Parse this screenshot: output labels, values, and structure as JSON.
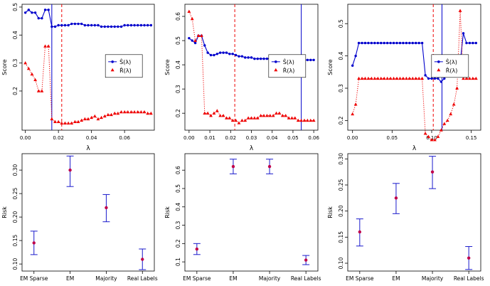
{
  "colors": {
    "s_series": "#0000cc",
    "r_series": "#ee0000",
    "errorbar": "#1a1acc",
    "point": "#c0004a"
  },
  "chart_data": [
    {
      "type": "line",
      "xlabel": "λ",
      "ylabel": "Score",
      "xlim": [
        -0.002,
        0.078
      ],
      "ylim": [
        0.06,
        0.51
      ],
      "xticks": [
        "0.00",
        "0.02",
        "0.04",
        "0.06"
      ],
      "xtick_values": [
        0,
        0.02,
        0.04,
        0.06
      ],
      "yticks": [
        "0.2",
        "0.3",
        "0.4",
        "0.5"
      ],
      "ytick_values": [
        0.2,
        0.3,
        0.4,
        0.5
      ],
      "x": [
        0.0,
        0.002,
        0.004,
        0.006,
        0.008,
        0.01,
        0.012,
        0.014,
        0.016,
        0.018,
        0.02,
        0.022,
        0.024,
        0.026,
        0.028,
        0.03,
        0.032,
        0.034,
        0.036,
        0.038,
        0.04,
        0.042,
        0.044,
        0.046,
        0.048,
        0.05,
        0.052,
        0.054,
        0.056,
        0.058,
        0.06,
        0.062,
        0.064,
        0.066,
        0.068,
        0.07,
        0.072,
        0.074,
        0.076
      ],
      "series": [
        {
          "name": "Ŝ(λ)",
          "values": [
            0.48,
            0.49,
            0.48,
            0.48,
            0.46,
            0.46,
            0.49,
            0.49,
            0.43,
            0.43,
            0.435,
            0.435,
            0.435,
            0.435,
            0.44,
            0.44,
            0.44,
            0.44,
            0.435,
            0.435,
            0.435,
            0.435,
            0.435,
            0.43,
            0.43,
            0.43,
            0.43,
            0.43,
            0.43,
            0.43,
            0.435,
            0.435,
            0.435,
            0.435,
            0.435,
            0.435,
            0.435,
            0.435,
            0.435
          ]
        },
        {
          "name": "R̂(λ)",
          "values": [
            0.3,
            0.28,
            0.26,
            0.24,
            0.2,
            0.2,
            0.36,
            0.36,
            0.1,
            0.09,
            0.09,
            0.085,
            0.085,
            0.085,
            0.085,
            0.09,
            0.09,
            0.095,
            0.1,
            0.1,
            0.105,
            0.11,
            0.1,
            0.105,
            0.11,
            0.115,
            0.115,
            0.12,
            0.12,
            0.125,
            0.125,
            0.125,
            0.125,
            0.125,
            0.125,
            0.125,
            0.125,
            0.12,
            0.12
          ]
        }
      ],
      "vlines": [
        {
          "x": 0.016,
          "style": "solid"
        },
        {
          "x": 0.022,
          "style": "dashed"
        }
      ],
      "legend": "right"
    },
    {
      "type": "line",
      "xlabel": "λ",
      "ylabel": "Score",
      "xlim": [
        -0.002,
        0.062
      ],
      "ylim": [
        0.13,
        0.65
      ],
      "xticks": [
        "0.00",
        "0.01",
        "0.02",
        "0.03",
        "0.04",
        "0.05",
        "0.06"
      ],
      "xtick_values": [
        0,
        0.01,
        0.02,
        0.03,
        0.04,
        0.05,
        0.06
      ],
      "yticks": [
        "0.2",
        "0.3",
        "0.4",
        "0.5",
        "0.6"
      ],
      "ytick_values": [
        0.2,
        0.3,
        0.4,
        0.5,
        0.6
      ],
      "x": [
        0.0,
        0.0015,
        0.003,
        0.0045,
        0.006,
        0.0075,
        0.009,
        0.0105,
        0.012,
        0.0135,
        0.015,
        0.0165,
        0.018,
        0.0195,
        0.021,
        0.0225,
        0.024,
        0.0255,
        0.027,
        0.0285,
        0.03,
        0.0315,
        0.033,
        0.0345,
        0.036,
        0.0375,
        0.039,
        0.0405,
        0.042,
        0.0435,
        0.045,
        0.0465,
        0.048,
        0.0495,
        0.051,
        0.0525,
        0.054,
        0.0555,
        0.057,
        0.0585,
        0.06
      ],
      "series": [
        {
          "name": "Ŝ(λ)",
          "values": [
            0.51,
            0.5,
            0.49,
            0.52,
            0.52,
            0.48,
            0.45,
            0.44,
            0.44,
            0.445,
            0.45,
            0.45,
            0.45,
            0.445,
            0.445,
            0.44,
            0.435,
            0.435,
            0.43,
            0.43,
            0.43,
            0.425,
            0.425,
            0.425,
            0.425,
            0.425,
            0.425,
            0.425,
            0.425,
            0.425,
            0.43,
            0.43,
            0.43,
            0.43,
            0.43,
            0.425,
            0.425,
            0.42,
            0.42,
            0.42,
            0.42
          ]
        },
        {
          "name": "R̂(λ)",
          "values": [
            0.62,
            0.59,
            0.5,
            0.52,
            0.52,
            0.2,
            0.2,
            0.19,
            0.2,
            0.21,
            0.19,
            0.19,
            0.18,
            0.18,
            0.17,
            0.17,
            0.16,
            0.17,
            0.17,
            0.18,
            0.18,
            0.18,
            0.18,
            0.19,
            0.19,
            0.19,
            0.19,
            0.19,
            0.2,
            0.2,
            0.19,
            0.19,
            0.18,
            0.18,
            0.18,
            0.17,
            0.17,
            0.17,
            0.17,
            0.17,
            0.17
          ]
        }
      ],
      "vlines": [
        {
          "x": 0.054,
          "style": "solid"
        },
        {
          "x": 0.022,
          "style": "dashed"
        }
      ],
      "legend": "right"
    },
    {
      "type": "line",
      "xlabel": "λ",
      "ylabel": "Score",
      "xlim": [
        -0.006,
        0.162
      ],
      "ylim": [
        0.17,
        0.56
      ],
      "xticks": [
        "0.00",
        "0.05",
        "0.10",
        "0.15"
      ],
      "xtick_values": [
        0,
        0.05,
        0.1,
        0.15
      ],
      "yticks": [
        "0.2",
        "0.3",
        "0.4",
        "0.5"
      ],
      "ytick_values": [
        0.2,
        0.3,
        0.4,
        0.5
      ],
      "x": [
        0.0,
        0.004,
        0.008,
        0.012,
        0.016,
        0.02,
        0.024,
        0.028,
        0.032,
        0.036,
        0.04,
        0.044,
        0.048,
        0.052,
        0.056,
        0.06,
        0.064,
        0.068,
        0.072,
        0.076,
        0.08,
        0.084,
        0.088,
        0.092,
        0.096,
        0.1,
        0.104,
        0.108,
        0.112,
        0.116,
        0.12,
        0.124,
        0.128,
        0.132,
        0.136,
        0.14,
        0.144,
        0.148,
        0.152,
        0.156
      ],
      "series": [
        {
          "name": "Ŝ(λ)",
          "values": [
            0.37,
            0.4,
            0.44,
            0.44,
            0.44,
            0.44,
            0.44,
            0.44,
            0.44,
            0.44,
            0.44,
            0.44,
            0.44,
            0.44,
            0.44,
            0.44,
            0.44,
            0.44,
            0.44,
            0.44,
            0.44,
            0.44,
            0.44,
            0.34,
            0.33,
            0.33,
            0.33,
            0.33,
            0.32,
            0.33,
            0.35,
            0.34,
            0.35,
            0.37,
            0.38,
            0.47,
            0.44,
            0.44,
            0.44,
            0.44
          ]
        },
        {
          "name": "R̂(λ)",
          "values": [
            0.22,
            0.25,
            0.33,
            0.33,
            0.33,
            0.33,
            0.33,
            0.33,
            0.33,
            0.33,
            0.33,
            0.33,
            0.33,
            0.33,
            0.33,
            0.33,
            0.33,
            0.33,
            0.33,
            0.33,
            0.33,
            0.33,
            0.33,
            0.16,
            0.15,
            0.14,
            0.14,
            0.15,
            0.17,
            0.19,
            0.2,
            0.22,
            0.25,
            0.3,
            0.54,
            0.33,
            0.33,
            0.33,
            0.33,
            0.33
          ]
        }
      ],
      "vlines": [
        {
          "x": 0.113,
          "style": "solid"
        },
        {
          "x": 0.102,
          "style": "dashed"
        }
      ],
      "legend": "right"
    },
    {
      "type": "errorbar",
      "ylabel": "Risk",
      "categories": [
        "EM Sparse",
        "EM",
        "Majority",
        "Real Labels"
      ],
      "ylim": [
        0.085,
        0.335
      ],
      "yticks": [
        "0.10",
        "0.15",
        "0.20",
        "0.25",
        "0.30"
      ],
      "ytick_values": [
        0.1,
        0.15,
        0.2,
        0.25,
        0.3
      ],
      "values": [
        0.145,
        0.3,
        0.22,
        0.11
      ],
      "lower": [
        0.12,
        0.265,
        0.19,
        0.088
      ],
      "upper": [
        0.17,
        0.33,
        0.248,
        0.132
      ]
    },
    {
      "type": "errorbar",
      "ylabel": "Risk",
      "categories": [
        "EM Sparse",
        "EM",
        "Majority",
        "Real Labels"
      ],
      "ylim": [
        0.05,
        0.69
      ],
      "yticks": [
        "0.1",
        "0.2",
        "0.3",
        "0.4",
        "0.5",
        "0.6"
      ],
      "ytick_values": [
        0.1,
        0.2,
        0.3,
        0.4,
        0.5,
        0.6
      ],
      "values": [
        0.17,
        0.62,
        0.62,
        0.11
      ],
      "lower": [
        0.14,
        0.58,
        0.58,
        0.085
      ],
      "upper": [
        0.2,
        0.66,
        0.66,
        0.135
      ]
    },
    {
      "type": "errorbar",
      "ylabel": "Risk",
      "categories": [
        "EM Sparse",
        "EM",
        "Majority",
        "Real Labels"
      ],
      "ylim": [
        0.085,
        0.31
      ],
      "yticks": [
        "0.10",
        "0.15",
        "0.20",
        "0.25",
        "0.30"
      ],
      "ytick_values": [
        0.1,
        0.15,
        0.2,
        0.25,
        0.3
      ],
      "values": [
        0.16,
        0.225,
        0.275,
        0.11
      ],
      "lower": [
        0.133,
        0.195,
        0.243,
        0.088
      ],
      "upper": [
        0.185,
        0.253,
        0.305,
        0.132
      ]
    }
  ]
}
